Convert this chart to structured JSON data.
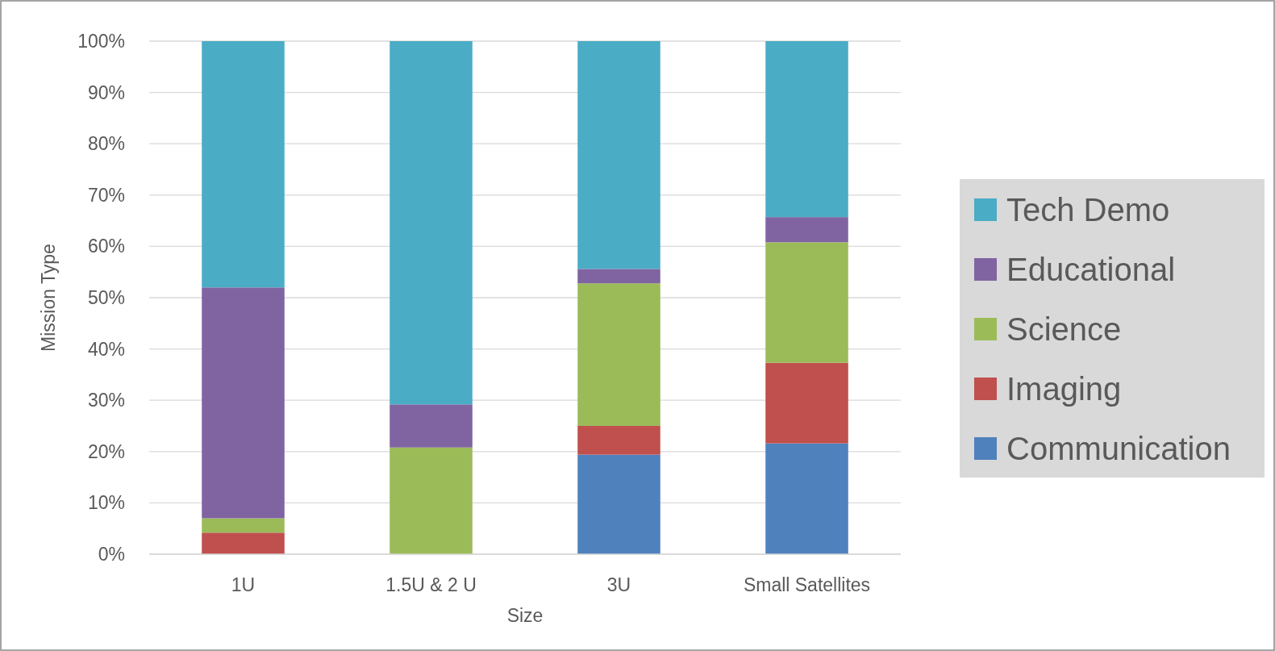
{
  "chart_data": {
    "type": "bar",
    "stacked": true,
    "xlabel": "Size",
    "ylabel": "Mission Type",
    "categories": [
      "1U",
      "1.5U & 2 U",
      "3U",
      "Small Satellites"
    ],
    "series": [
      {
        "name": "Communication",
        "color": "#4f81bd",
        "values": [
          0,
          0,
          19.4,
          21.6
        ]
      },
      {
        "name": "Imaging",
        "color": "#c0504d",
        "values": [
          4.2,
          0,
          5.6,
          15.7
        ]
      },
      {
        "name": "Science",
        "color": "#9bbb59",
        "values": [
          2.8,
          20.8,
          27.8,
          23.5
        ]
      },
      {
        "name": "Educational",
        "color": "#8064a2",
        "values": [
          45,
          8.4,
          2.8,
          4.9
        ]
      },
      {
        "name": "Tech Demo",
        "color": "#4bacc6",
        "values": [
          48,
          70.8,
          44.4,
          34.3
        ]
      }
    ],
    "ylim": [
      0,
      100
    ],
    "yticks": [
      {
        "value": 0,
        "label": "0%"
      },
      {
        "value": 10,
        "label": "10%"
      },
      {
        "value": 20,
        "label": "20%"
      },
      {
        "value": 30,
        "label": "30%"
      },
      {
        "value": 40,
        "label": "40%"
      },
      {
        "value": 50,
        "label": "50%"
      },
      {
        "value": 60,
        "label": "60%"
      },
      {
        "value": 70,
        "label": "70%"
      },
      {
        "value": 80,
        "label": "80%"
      },
      {
        "value": 90,
        "label": "90%"
      },
      {
        "value": 100,
        "label": "100%"
      }
    ],
    "grid": "y",
    "legend": "right"
  }
}
